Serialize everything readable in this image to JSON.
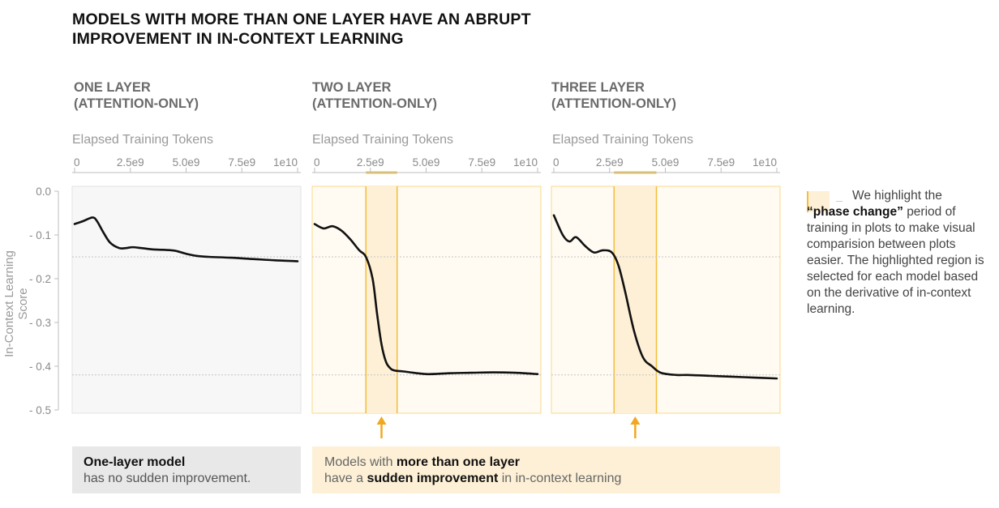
{
  "title": "MODELS WITH MORE THAN ONE LAYER HAVE AN ABRUPT IMPROVEMENT IN IN-CONTEXT LEARNING",
  "colors": {
    "line": "#111111",
    "highlight_fill": "#fdf0d6",
    "highlight_edge": "#f4bd3a",
    "arrow": "#f0a820",
    "plot_bg_plain": "#f7f7f7",
    "plot_bg_highlight": "#fffbf2"
  },
  "legend": {
    "lead": "We highlight the",
    "emph": "“phase change”",
    "rest": "period of training in plots to make visual comparision between plots easier. The highlighted region is selected for each model based on the derivative of in-context learning."
  },
  "callouts": {
    "one_layer_emph": "One-layer model",
    "one_layer_rest": "has no sudden improvement.",
    "multi_pre": "Models with ",
    "multi_emph1": "more than one layer",
    "multi_mid": "have a ",
    "multi_emph2": "sudden improvement",
    "multi_post": " in in-context learning"
  },
  "chart_data": {
    "type": "line",
    "ylabel": "In-Context Learning Score",
    "xlabel": "Elapsed Training Tokens",
    "ylim": [
      -0.5,
      0.0
    ],
    "yticks": [
      "0.0",
      "- 0.1",
      "- 0.2",
      "- 0.3",
      "- 0.4",
      "- 0.5"
    ],
    "xlim": [
      0,
      10000000000.0
    ],
    "xticks": [
      "0",
      "2.5e9",
      "5.0e9",
      "7.5e9",
      "1e10"
    ],
    "reference_lines": [
      -0.15,
      -0.42
    ],
    "panels": [
      {
        "title_line1": "ONE LAYER",
        "title_line2": "(ATTENTION-ONLY)",
        "highlight": null,
        "x": [
          0,
          400000000.0,
          800000000.0,
          1000000000.0,
          1300000000.0,
          1600000000.0,
          2000000000.0,
          2300000000.0,
          2600000000.0,
          3000000000.0,
          3500000000.0,
          4000000000.0,
          4500000000.0,
          5000000000.0,
          5500000000.0,
          6000000000.0,
          7000000000.0,
          8000000000.0,
          9000000000.0,
          10000000000.0
        ],
        "y": [
          -0.075,
          -0.068,
          -0.06,
          -0.068,
          -0.095,
          -0.118,
          -0.13,
          -0.13,
          -0.128,
          -0.13,
          -0.133,
          -0.134,
          -0.136,
          -0.143,
          -0.148,
          -0.15,
          -0.152,
          -0.155,
          -0.158,
          -0.16
        ]
      },
      {
        "title_line1": "TWO LAYER",
        "title_line2": "(ATTENTION-ONLY)",
        "highlight": [
          2300000000.0,
          3700000000.0
        ],
        "x": [
          0,
          400000000.0,
          800000000.0,
          1200000000.0,
          1600000000.0,
          2000000000.0,
          2300000000.0,
          2600000000.0,
          2800000000.0,
          3000000000.0,
          3200000000.0,
          3400000000.0,
          3600000000.0,
          4000000000.0,
          5000000000.0,
          6000000000.0,
          7000000000.0,
          8000000000.0,
          9000000000.0,
          10000000000.0
        ],
        "y": [
          -0.075,
          -0.085,
          -0.08,
          -0.09,
          -0.11,
          -0.135,
          -0.15,
          -0.2,
          -0.28,
          -0.35,
          -0.39,
          -0.405,
          -0.41,
          -0.412,
          -0.418,
          -0.416,
          -0.415,
          -0.414,
          -0.415,
          -0.418
        ]
      },
      {
        "title_line1": "THREE LAYER",
        "title_line2": "(ATTENTION-ONLY)",
        "highlight": [
          2700000000.0,
          4600000000.0
        ],
        "x": [
          0,
          400000000.0,
          700000000.0,
          1000000000.0,
          1400000000.0,
          1800000000.0,
          2200000000.0,
          2600000000.0,
          2900000000.0,
          3200000000.0,
          3600000000.0,
          4000000000.0,
          4400000000.0,
          4800000000.0,
          5500000000.0,
          6000000000.0,
          7000000000.0,
          8000000000.0,
          9000000000.0,
          10000000000.0
        ],
        "y": [
          -0.055,
          -0.1,
          -0.115,
          -0.105,
          -0.125,
          -0.14,
          -0.135,
          -0.14,
          -0.17,
          -0.23,
          -0.32,
          -0.38,
          -0.4,
          -0.415,
          -0.42,
          -0.42,
          -0.422,
          -0.424,
          -0.426,
          -0.428
        ]
      }
    ]
  }
}
